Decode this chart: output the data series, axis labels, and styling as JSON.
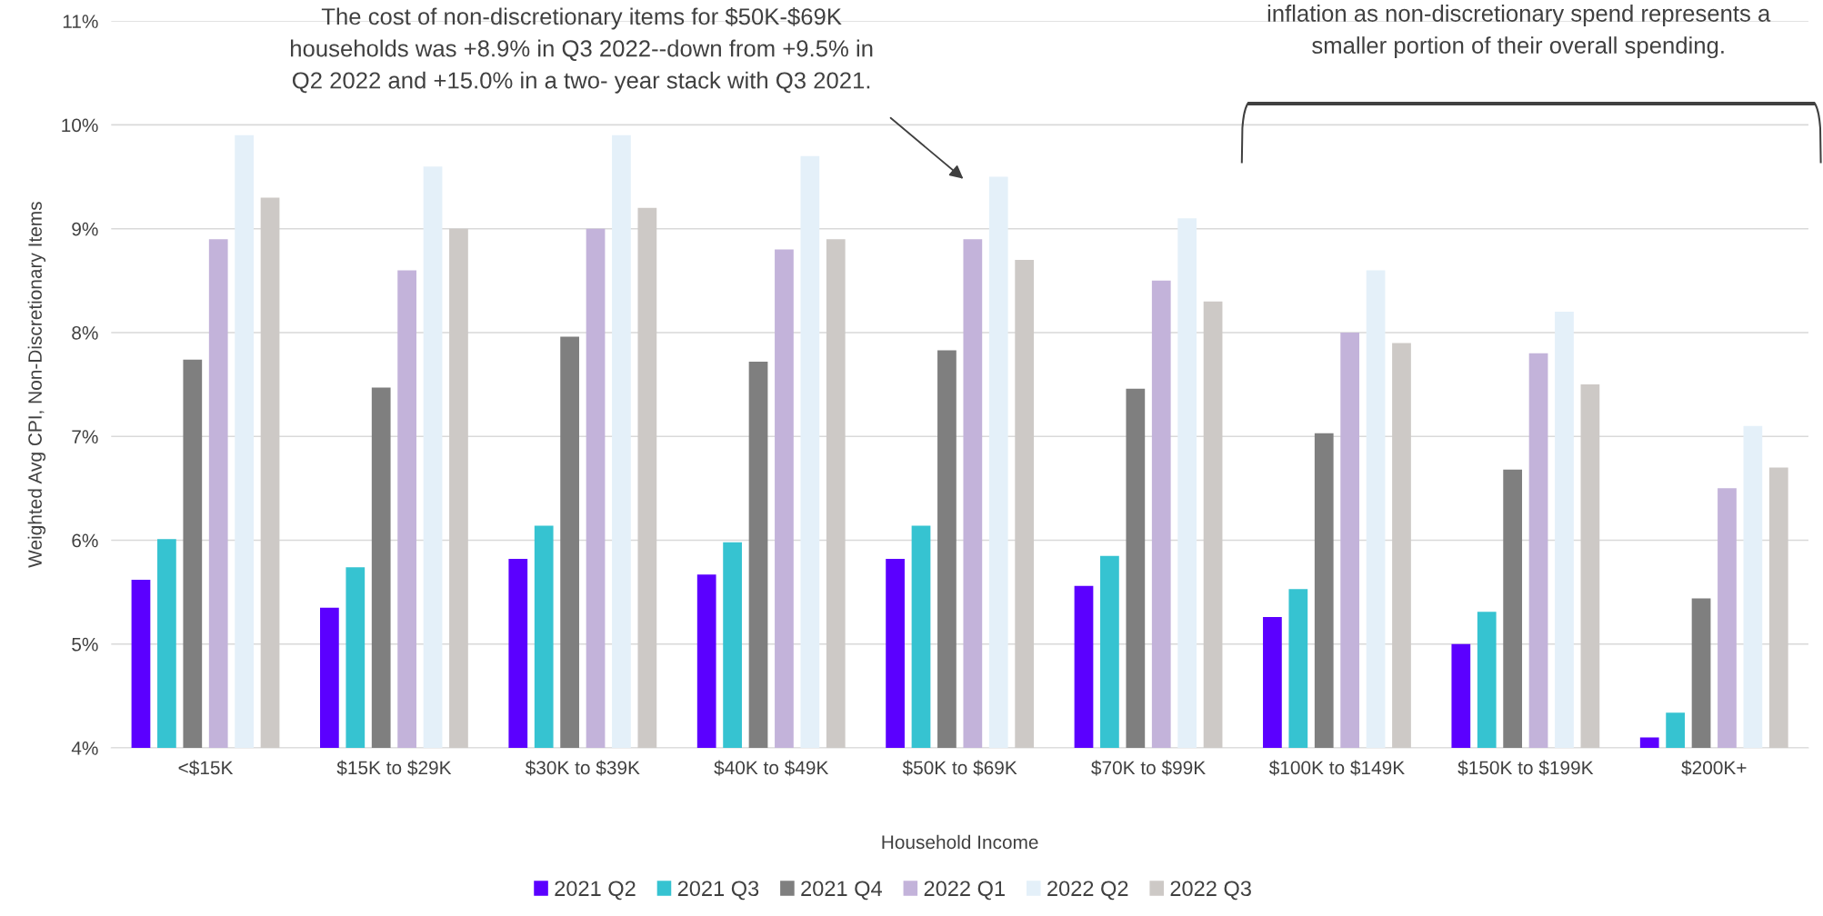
{
  "chart_data": {
    "type": "bar",
    "xlabel": "Household Income",
    "ylabel": "Weighted Avg CPI, Non-Discretionary Items",
    "categories": [
      "<$15K",
      "$15K to $29K",
      "$30K to $39K",
      "$40K to $49K",
      "$50K to $69K",
      "$70K to $99K",
      "$100K to $149K",
      "$150K to $199K",
      "$200K+"
    ],
    "series": [
      {
        "name": "2021 Q2",
        "color": "#5b00ff",
        "values": [
          5.62,
          5.35,
          5.82,
          5.67,
          5.82,
          5.56,
          5.26,
          5.0,
          4.1
        ]
      },
      {
        "name": "2021 Q3",
        "color": "#36c3d1",
        "values": [
          6.01,
          5.74,
          6.14,
          5.98,
          6.14,
          5.85,
          5.53,
          5.31,
          4.34
        ]
      },
      {
        "name": "2021 Q4",
        "color": "#7f7f7f",
        "values": [
          7.74,
          7.47,
          7.96,
          7.72,
          7.83,
          7.46,
          7.03,
          6.68,
          5.44
        ]
      },
      {
        "name": "2022 Q1",
        "color": "#c3b3da",
        "values": [
          8.9,
          8.6,
          9.0,
          8.8,
          8.9,
          8.5,
          8.0,
          7.8,
          6.5
        ]
      },
      {
        "name": "2022 Q2",
        "color": "#e4f0f9",
        "values": [
          9.9,
          9.6,
          9.9,
          9.7,
          9.5,
          9.1,
          8.6,
          8.2,
          7.1
        ]
      },
      {
        "name": "2022 Q3",
        "color": "#cdc9c6",
        "values": [
          9.3,
          9.0,
          9.2,
          8.9,
          8.7,
          8.3,
          7.9,
          7.5,
          6.7
        ]
      }
    ],
    "ylim": [
      4,
      11
    ],
    "yticks": [
      {
        "value": 4,
        "label": "4%"
      },
      {
        "value": 5,
        "label": "5%"
      },
      {
        "value": 6,
        "label": "6%"
      },
      {
        "value": 7,
        "label": "7%"
      },
      {
        "value": 8,
        "label": "8%"
      },
      {
        "value": 9,
        "label": "9%"
      },
      {
        "value": 10,
        "label": "10%"
      },
      {
        "value": 11,
        "label": "11%"
      }
    ],
    "grid": "y",
    "legend": "bottom",
    "annotations": [
      "The cost of non-discretionary items for $50K-$69K\nhouseholds was +8.9% in Q3 2022--down from +9.5% in\nQ2 2022 and +15.0% in a two- year stack with Q3 2021.",
      "inflation as non-discretionary spend represents a\nsmaller portion of their overall spending."
    ]
  }
}
